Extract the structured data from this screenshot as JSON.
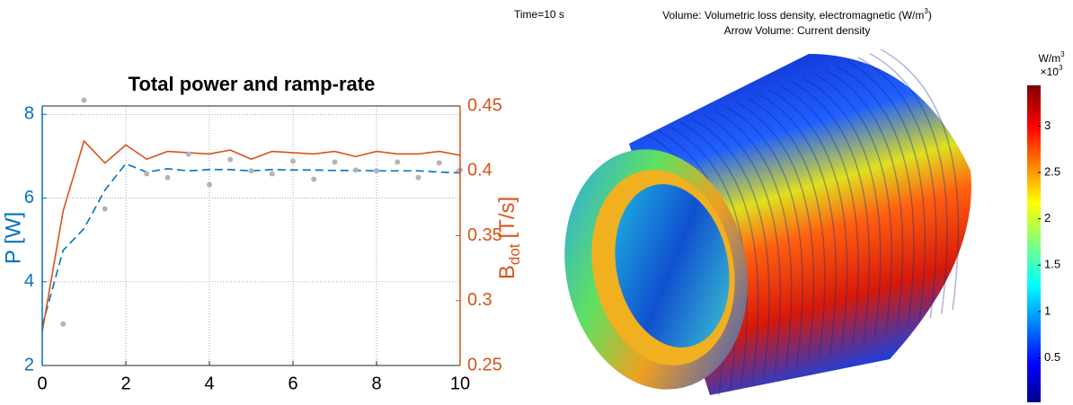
{
  "chart_data": {
    "type": "line",
    "title": "Total power and ramp-rate",
    "ylabel": "P [W]",
    "y2label": "B",
    "y2label_sub": "dot",
    "y2label_unit": "[T/s]",
    "x": [
      0,
      0.5,
      1,
      1.5,
      2,
      2.5,
      3,
      3.5,
      4,
      4.5,
      5,
      5.5,
      6,
      6.5,
      7,
      7.5,
      8,
      8.5,
      9,
      9.5,
      10
    ],
    "xlim": [
      0,
      10
    ],
    "xticks": [
      0,
      2,
      4,
      6,
      8,
      10
    ],
    "ylim": [
      2,
      8.2
    ],
    "yticks": [
      2,
      4,
      6,
      8
    ],
    "y2lim": [
      0.25,
      0.45
    ],
    "y2ticks": [
      0.25,
      0.3,
      0.35,
      0.4,
      0.45
    ],
    "grid": true,
    "series": [
      {
        "color": "#0072bd",
        "style": "dashed",
        "axis": "y",
        "values": [
          2.95,
          4.75,
          5.27,
          6.19,
          6.82,
          6.62,
          6.7,
          6.65,
          6.68,
          6.68,
          6.65,
          6.68,
          6.67,
          6.67,
          6.66,
          6.66,
          6.65,
          6.65,
          6.65,
          6.62,
          6.6
        ]
      },
      {
        "color": "#d95319",
        "style": "solid",
        "axis": "y2",
        "values": [
          0.276,
          0.369,
          0.423,
          0.406,
          0.42,
          0.409,
          0.415,
          0.414,
          0.413,
          0.416,
          0.409,
          0.415,
          0.414,
          0.413,
          0.415,
          0.411,
          0.415,
          0.413,
          0.413,
          0.415,
          0.412
        ]
      },
      {
        "type": "scatter",
        "color": "#b4b4b4",
        "axis": "y",
        "x": [
          0.5,
          1,
          1.5,
          2.5,
          3,
          3.5,
          4,
          4.5,
          5,
          5.5,
          6,
          6.5,
          7,
          7.5,
          8,
          8.5,
          9,
          9.5,
          10
        ],
        "values": [
          2.99,
          8.34,
          5.74,
          6.58,
          6.49,
          7.05,
          6.32,
          6.92,
          6.65,
          6.58,
          6.88,
          6.45,
          6.86,
          6.67,
          6.65,
          6.86,
          6.49,
          6.84,
          6.67
        ]
      }
    ]
  },
  "render": {
    "time_label": "Time=10 s",
    "title_pre": "Volume: Volumetric loss density, electromagnetic (W/m",
    "title_sup": "3",
    "title_post": ")",
    "subtitle": "Arrow Volume: Current density",
    "colorbar": {
      "unit": "W/m",
      "unit_sup": "3",
      "multiplier": "×10",
      "multiplier_sup": "3",
      "range": [
        0.02,
        3.44
      ],
      "ticks": [
        0.5,
        1,
        1.5,
        2,
        2.5,
        3
      ]
    }
  }
}
